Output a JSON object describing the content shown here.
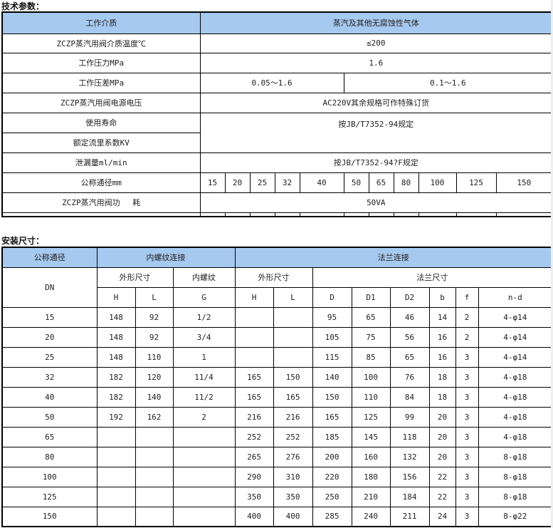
{
  "tech": {
    "title": "技术参数：",
    "medium_label": "工作介质",
    "medium_value": "蒸汽及其他无腐蚀性气体",
    "temp_label": "ZCZP蒸汽用阀介质温度℃",
    "temp_value": "≤200",
    "pressure_label": "工作压力MPa",
    "pressure_value": "1.6",
    "diff_label": "工作压差MPa",
    "diff_value_1": "0.05～1.6",
    "diff_value_2": "0.1～1.6",
    "voltage_label": "ZCZP蒸汽用阀电源电压",
    "voltage_value": "AC220V其余规格可作特殊订货",
    "life_label": "使用寿命",
    "life_value": "按JB/T7352-94规定",
    "kv_label": "额定流里系数KV",
    "leak_label": "泄漏量ml/min",
    "leak_value": "按JB/T7352-94?F规定",
    "dn_label": "公称通径mm",
    "dn_values": [
      "15",
      "20",
      "25",
      "32",
      "40",
      "50",
      "65",
      "80",
      "100",
      "125",
      "150"
    ],
    "power_label": "ZCZP蒸汽用阀功　 耗",
    "power_value": "50VA"
  },
  "install": {
    "title": "安装尺寸：",
    "h_dn": "公称通径",
    "h_thread": "内螺纹连接",
    "h_flange": "法兰连接",
    "dn": "DN",
    "outer_size": "外形尺寸",
    "inner_thread": "内螺纹",
    "outer_size2": "外形尺寸",
    "flange_size": "法兰尺寸",
    "cols": [
      "H",
      "L",
      "G",
      "H",
      "L",
      "D",
      "D1",
      "D2",
      "b",
      "f",
      "n-d"
    ],
    "rows": [
      [
        "15",
        "148",
        "92",
        "1/2",
        "",
        "",
        "95",
        "65",
        "46",
        "14",
        "2",
        "4-φ14"
      ],
      [
        "20",
        "148",
        "92",
        "3/4",
        "",
        "",
        "105",
        "75",
        "56",
        "16",
        "2",
        "4-φ14"
      ],
      [
        "25",
        "148",
        "110",
        "1",
        "",
        "",
        "115",
        "85",
        "65",
        "16",
        "3",
        "4-φ14"
      ],
      [
        "32",
        "182",
        "120",
        "11/4",
        "165",
        "150",
        "140",
        "100",
        "76",
        "18",
        "3",
        "4-φ18"
      ],
      [
        "40",
        "182",
        "140",
        "11/2",
        "165",
        "165",
        "150",
        "110",
        "84",
        "18",
        "3",
        "4-φ18"
      ],
      [
        "50",
        "192",
        "162",
        "2",
        "216",
        "216",
        "165",
        "125",
        "99",
        "20",
        "3",
        "4-φ18"
      ],
      [
        "65",
        "",
        "",
        "",
        "252",
        "252",
        "185",
        "145",
        "118",
        "20",
        "3",
        "4-φ18"
      ],
      [
        "80",
        "",
        "",
        "",
        "265",
        "276",
        "200",
        "160",
        "132",
        "20",
        "3",
        "8-φ18"
      ],
      [
        "100",
        "",
        "",
        "",
        "290",
        "310",
        "220",
        "180",
        "156",
        "22",
        "3",
        "8-φ18"
      ],
      [
        "125",
        "",
        "",
        "",
        "350",
        "350",
        "250",
        "210",
        "184",
        "22",
        "3",
        "8-φ18"
      ],
      [
        "150",
        "",
        "",
        "",
        "400",
        "400",
        "285",
        "240",
        "211",
        "24",
        "3",
        "8-φ22"
      ]
    ]
  }
}
